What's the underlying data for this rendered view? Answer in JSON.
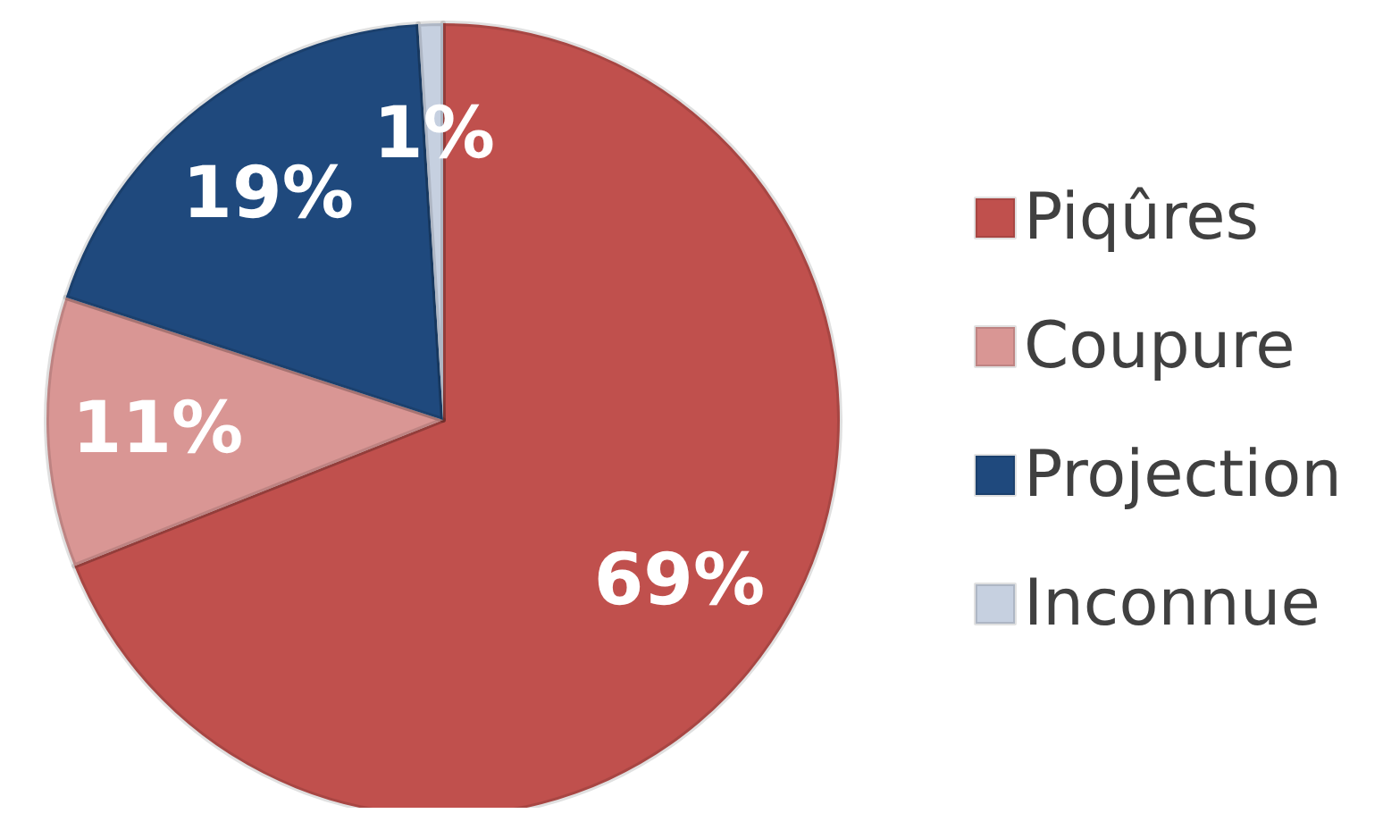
{
  "chart_data": {
    "type": "pie",
    "categories": [
      "Piqûres",
      "Coupure",
      "Projection",
      "Inconnue"
    ],
    "values": [
      69,
      11,
      19,
      1
    ],
    "colors": [
      "#c0504d",
      "#d99694",
      "#1f497d",
      "#c6d0e0"
    ],
    "value_labels": [
      "69%",
      "11%",
      "19%",
      "1%"
    ],
    "legend": "right"
  }
}
